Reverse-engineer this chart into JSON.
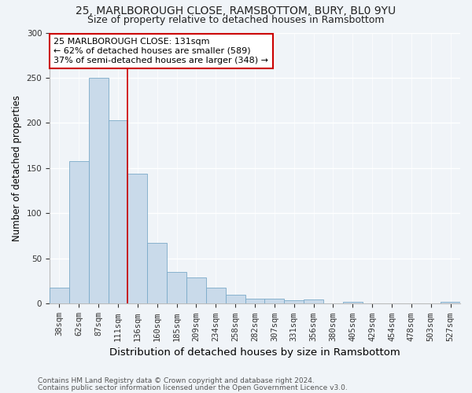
{
  "title1": "25, MARLBOROUGH CLOSE, RAMSBOTTOM, BURY, BL0 9YU",
  "title2": "Size of property relative to detached houses in Ramsbottom",
  "xlabel": "Distribution of detached houses by size in Ramsbottom",
  "ylabel": "Number of detached properties",
  "categories": [
    "38sqm",
    "62sqm",
    "87sqm",
    "111sqm",
    "136sqm",
    "160sqm",
    "185sqm",
    "209sqm",
    "234sqm",
    "258sqm",
    "282sqm",
    "307sqm",
    "331sqm",
    "356sqm",
    "380sqm",
    "405sqm",
    "429sqm",
    "454sqm",
    "478sqm",
    "503sqm",
    "527sqm"
  ],
  "values": [
    18,
    158,
    250,
    203,
    144,
    67,
    35,
    29,
    18,
    10,
    6,
    6,
    4,
    5,
    0,
    2,
    0,
    0,
    0,
    0,
    2
  ],
  "bar_color": "#c9daea",
  "bar_edge_color": "#7aaac8",
  "annotation_line1": "25 MARLBOROUGH CLOSE: 131sqm",
  "annotation_line2": "← 62% of detached houses are smaller (589)",
  "annotation_line3": "37% of semi-detached houses are larger (348) →",
  "red_line_x": 3.5,
  "red_line_color": "#cc0000",
  "ann_box_facecolor": "#ffffff",
  "ann_box_edgecolor": "#cc0000",
  "ylim": [
    0,
    300
  ],
  "yticks": [
    0,
    50,
    100,
    150,
    200,
    250,
    300
  ],
  "footer1": "Contains HM Land Registry data © Crown copyright and database right 2024.",
  "footer2": "Contains public sector information licensed under the Open Government Licence v3.0.",
  "bg_color": "#f0f4f8",
  "title1_fontsize": 10,
  "title2_fontsize": 9,
  "xlabel_fontsize": 9.5,
  "ylabel_fontsize": 8.5,
  "tick_fontsize": 7.5,
  "annotation_fontsize": 8,
  "footer_fontsize": 6.5
}
